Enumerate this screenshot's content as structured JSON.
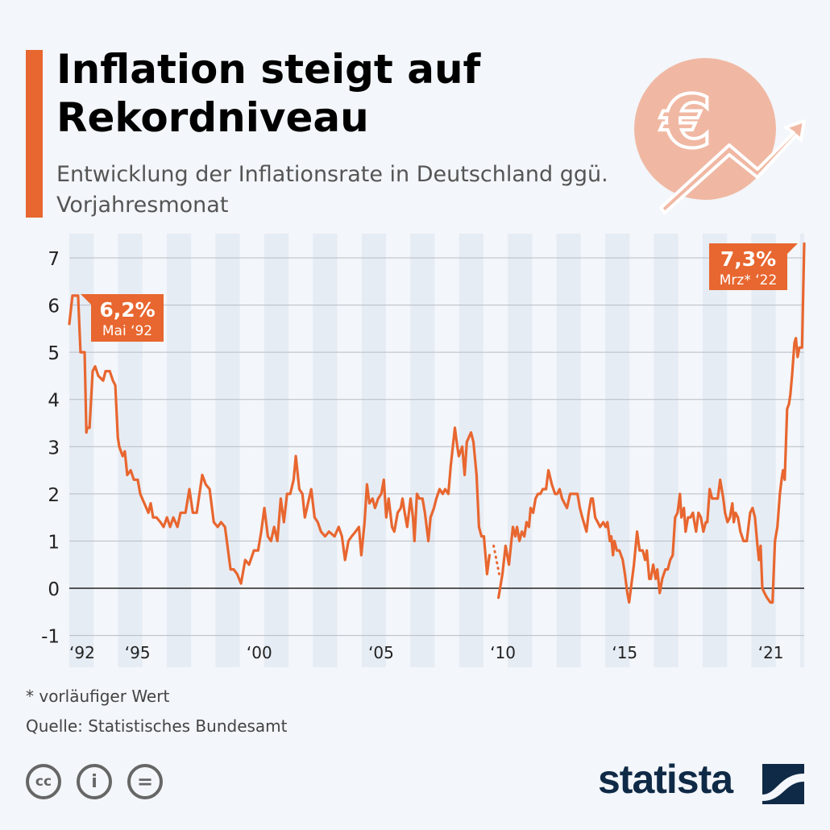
{
  "header": {
    "title": "Inflation steigt auf Rekordniveau",
    "subtitle": "Entwicklung der Inflationsrate in Deutschland ggü. Vorjahresmonat",
    "hero_icon": "euro-rising-arrow-icon",
    "hero_icon_text": "€"
  },
  "colors": {
    "accent": "#e8662f",
    "background": "#f3f6fa",
    "stripe": "#e6ecf4",
    "grid": "#b8bcc4",
    "zero_line": "#222222",
    "brand": "#0f2a46",
    "icon_circle": "#f0b8a3"
  },
  "chart_data": {
    "type": "line",
    "xlabel": "",
    "ylabel": "",
    "ylim": [
      -1,
      7.3
    ],
    "xlim": [
      1992,
      2022.17
    ],
    "yticks": [
      "-1",
      "0",
      "1",
      "2",
      "3",
      "4",
      "5",
      "6",
      "7"
    ],
    "xticks": [
      {
        "value": 1992,
        "label": "‘92"
      },
      {
        "value": 1995,
        "label": "‘95"
      },
      {
        "value": 2000,
        "label": "‘00"
      },
      {
        "value": 2005,
        "label": "‘05"
      },
      {
        "value": 2010,
        "label": "‘10"
      },
      {
        "value": 2015,
        "label": "‘15"
      },
      {
        "value": 2021,
        "label": "‘21"
      }
    ],
    "grid": true,
    "alternating_year_stripes": true,
    "annotations": [
      {
        "value_label": "6,2%",
        "date_label": "Mai ‘92",
        "x": 1992.36,
        "y": 6.2
      },
      {
        "value_label": "7,3%",
        "date_label": "Mrz* ‘22",
        "x": 2022.17,
        "y": 7.3
      }
    ],
    "segments": [
      {
        "style": "solid",
        "points": [
          [
            1992.0,
            5.6
          ],
          [
            1992.13,
            6.2
          ],
          [
            1992.3,
            6.2
          ],
          [
            1992.36,
            6.2
          ],
          [
            1992.46,
            5.0
          ],
          [
            1992.63,
            5.0
          ],
          [
            1992.7,
            3.3
          ],
          [
            1992.73,
            3.4
          ],
          [
            1992.83,
            3.4
          ],
          [
            1992.96,
            4.6
          ],
          [
            1993.06,
            4.7
          ],
          [
            1993.19,
            4.5
          ],
          [
            1993.39,
            4.4
          ],
          [
            1993.49,
            4.6
          ],
          [
            1993.66,
            4.6
          ],
          [
            1993.79,
            4.4
          ],
          [
            1993.89,
            4.3
          ],
          [
            1993.99,
            3.2
          ],
          [
            1994.05,
            3.0
          ],
          [
            1994.19,
            2.8
          ],
          [
            1994.28,
            2.9
          ],
          [
            1994.38,
            2.4
          ],
          [
            1994.52,
            2.5
          ],
          [
            1994.65,
            2.3
          ],
          [
            1994.81,
            2.3
          ],
          [
            1994.91,
            2.0
          ],
          [
            1995.08,
            1.8
          ],
          [
            1995.25,
            1.6
          ],
          [
            1995.34,
            1.8
          ],
          [
            1995.44,
            1.5
          ],
          [
            1995.58,
            1.5
          ],
          [
            1995.74,
            1.4
          ],
          [
            1995.87,
            1.3
          ],
          [
            1996.01,
            1.5
          ],
          [
            1996.14,
            1.3
          ],
          [
            1996.27,
            1.5
          ],
          [
            1996.44,
            1.3
          ],
          [
            1996.57,
            1.6
          ],
          [
            1996.77,
            1.6
          ],
          [
            1996.93,
            2.1
          ],
          [
            1997.07,
            1.6
          ],
          [
            1997.23,
            1.6
          ],
          [
            1997.46,
            2.4
          ],
          [
            1997.6,
            2.2
          ],
          [
            1997.76,
            2.1
          ],
          [
            1997.93,
            1.4
          ],
          [
            1998.09,
            1.3
          ],
          [
            1998.23,
            1.4
          ],
          [
            1998.39,
            1.3
          ],
          [
            1998.62,
            0.4
          ],
          [
            1998.75,
            0.4
          ],
          [
            1998.89,
            0.3
          ],
          [
            1999.05,
            0.1
          ],
          [
            1999.22,
            0.6
          ],
          [
            1999.38,
            0.5
          ],
          [
            1999.58,
            0.8
          ],
          [
            1999.75,
            0.8
          ],
          [
            1999.88,
            1.2
          ],
          [
            2000.01,
            1.7
          ],
          [
            2000.15,
            1.1
          ],
          [
            2000.28,
            1.0
          ],
          [
            2000.41,
            1.3
          ],
          [
            2000.54,
            1.0
          ],
          [
            2000.68,
            1.9
          ],
          [
            2000.81,
            1.4
          ],
          [
            2000.94,
            2.0
          ],
          [
            2001.07,
            2.0
          ],
          [
            2001.21,
            2.3
          ],
          [
            2001.3,
            2.8
          ],
          [
            2001.44,
            2.1
          ],
          [
            2001.57,
            2.0
          ],
          [
            2001.67,
            1.5
          ],
          [
            2001.8,
            1.8
          ],
          [
            2001.93,
            2.1
          ],
          [
            2002.07,
            1.5
          ],
          [
            2002.2,
            1.4
          ],
          [
            2002.33,
            1.2
          ],
          [
            2002.5,
            1.1
          ],
          [
            2002.66,
            1.2
          ],
          [
            2002.89,
            1.1
          ],
          [
            2003.06,
            1.3
          ],
          [
            2003.19,
            1.1
          ],
          [
            2003.32,
            0.6
          ],
          [
            2003.46,
            1.0
          ],
          [
            2003.59,
            1.1
          ],
          [
            2003.75,
            1.2
          ],
          [
            2003.89,
            1.3
          ],
          [
            2003.99,
            0.7
          ],
          [
            2004.12,
            1.4
          ],
          [
            2004.22,
            2.2
          ],
          [
            2004.32,
            1.8
          ],
          [
            2004.45,
            1.9
          ],
          [
            2004.55,
            1.7
          ],
          [
            2004.68,
            1.9
          ],
          [
            2004.81,
            2.0
          ],
          [
            2004.91,
            2.3
          ],
          [
            2005.01,
            1.5
          ],
          [
            2005.11,
            1.9
          ],
          [
            2005.25,
            1.3
          ],
          [
            2005.34,
            1.2
          ],
          [
            2005.48,
            1.6
          ],
          [
            2005.61,
            1.7
          ],
          [
            2005.68,
            1.9
          ],
          [
            2005.77,
            1.6
          ],
          [
            2005.87,
            1.3
          ],
          [
            2006.01,
            1.9
          ],
          [
            2006.11,
            1.5
          ],
          [
            2006.17,
            1.0
          ],
          [
            2006.27,
            2.0
          ],
          [
            2006.37,
            1.9
          ],
          [
            2006.5,
            1.9
          ],
          [
            2006.6,
            1.6
          ],
          [
            2006.74,
            1.0
          ],
          [
            2006.83,
            1.5
          ],
          [
            2006.97,
            1.7
          ],
          [
            2007.07,
            1.9
          ],
          [
            2007.2,
            2.1
          ],
          [
            2007.33,
            2.0
          ],
          [
            2007.43,
            2.1
          ],
          [
            2007.56,
            2.0
          ],
          [
            2007.66,
            2.6
          ],
          [
            2007.83,
            3.4
          ],
          [
            2007.93,
            3.0
          ],
          [
            2007.99,
            2.8
          ],
          [
            2008.13,
            3.0
          ],
          [
            2008.23,
            2.4
          ],
          [
            2008.32,
            3.1
          ],
          [
            2008.49,
            3.3
          ],
          [
            2008.59,
            3.1
          ],
          [
            2008.72,
            2.4
          ],
          [
            2008.82,
            1.3
          ],
          [
            2008.92,
            1.1
          ],
          [
            2009.02,
            1.1
          ],
          [
            2009.15,
            0.3
          ],
          [
            2009.25,
            0.7
          ]
        ]
      },
      {
        "style": "dotted",
        "points": [
          [
            2009.42,
            0.9
          ],
          [
            2009.65,
            0.3
          ]
        ]
      },
      {
        "style": "solid",
        "points": [
          [
            2009.62,
            -0.2
          ],
          [
            2009.78,
            0.3
          ],
          [
            2009.91,
            0.9
          ],
          [
            2010.05,
            0.5
          ],
          [
            2010.11,
            0.8
          ],
          [
            2010.21,
            1.3
          ],
          [
            2010.31,
            1.1
          ],
          [
            2010.38,
            1.3
          ],
          [
            2010.48,
            1.0
          ],
          [
            2010.58,
            1.2
          ],
          [
            2010.68,
            1.1
          ],
          [
            2010.77,
            1.4
          ],
          [
            2010.87,
            1.3
          ],
          [
            2010.94,
            1.7
          ],
          [
            2011.04,
            1.6
          ],
          [
            2011.14,
            1.9
          ],
          [
            2011.24,
            2.0
          ],
          [
            2011.34,
            2.0
          ],
          [
            2011.44,
            2.1
          ],
          [
            2011.57,
            2.1
          ],
          [
            2011.67,
            2.5
          ],
          [
            2011.81,
            2.2
          ],
          [
            2011.94,
            2.0
          ],
          [
            2012.03,
            2.0
          ],
          [
            2012.13,
            2.1
          ],
          [
            2012.23,
            1.9
          ],
          [
            2012.33,
            1.8
          ],
          [
            2012.43,
            1.7
          ],
          [
            2012.56,
            2.0
          ],
          [
            2012.7,
            2.0
          ],
          [
            2012.86,
            2.0
          ],
          [
            2012.96,
            1.7
          ],
          [
            2013.06,
            1.5
          ],
          [
            2013.23,
            1.2
          ],
          [
            2013.32,
            1.6
          ],
          [
            2013.42,
            1.9
          ],
          [
            2013.49,
            1.9
          ],
          [
            2013.59,
            1.5
          ],
          [
            2013.69,
            1.4
          ],
          [
            2013.79,
            1.3
          ],
          [
            2013.92,
            1.4
          ],
          [
            2014.02,
            1.3
          ],
          [
            2014.09,
            1.4
          ],
          [
            2014.19,
            1.0
          ],
          [
            2014.25,
            1.1
          ],
          [
            2014.32,
            0.7
          ],
          [
            2014.38,
            1.0
          ],
          [
            2014.48,
            0.8
          ],
          [
            2014.58,
            0.8
          ],
          [
            2014.72,
            0.6
          ],
          [
            2014.81,
            0.3
          ],
          [
            2014.91,
            -0.1
          ],
          [
            2014.98,
            -0.3
          ],
          [
            2015.08,
            0.1
          ],
          [
            2015.18,
            0.5
          ],
          [
            2015.31,
            1.2
          ],
          [
            2015.41,
            0.8
          ],
          [
            2015.54,
            0.8
          ],
          [
            2015.64,
            0.6
          ],
          [
            2015.71,
            0.8
          ],
          [
            2015.81,
            0.2
          ],
          [
            2015.87,
            0.2
          ],
          [
            2015.97,
            0.5
          ],
          [
            2016.07,
            0.2
          ],
          [
            2016.14,
            0.4
          ],
          [
            2016.24,
            -0.1
          ],
          [
            2016.34,
            0.2
          ],
          [
            2016.47,
            0.4
          ],
          [
            2016.57,
            0.4
          ],
          [
            2016.67,
            0.6
          ],
          [
            2016.77,
            0.7
          ],
          [
            2016.87,
            1.5
          ],
          [
            2016.97,
            1.6
          ],
          [
            2017.07,
            2.0
          ],
          [
            2017.13,
            1.5
          ],
          [
            2017.23,
            1.7
          ],
          [
            2017.3,
            1.2
          ],
          [
            2017.4,
            1.5
          ],
          [
            2017.5,
            1.5
          ],
          [
            2017.6,
            1.6
          ],
          [
            2017.66,
            1.4
          ],
          [
            2017.73,
            1.2
          ],
          [
            2017.83,
            1.6
          ],
          [
            2017.93,
            1.5
          ],
          [
            2018.03,
            1.2
          ],
          [
            2018.13,
            1.4
          ],
          [
            2018.19,
            1.4
          ],
          [
            2018.29,
            2.1
          ],
          [
            2018.39,
            1.9
          ],
          [
            2018.52,
            1.9
          ],
          [
            2018.62,
            1.9
          ],
          [
            2018.72,
            2.3
          ],
          [
            2018.85,
            1.9
          ],
          [
            2018.92,
            1.6
          ],
          [
            2019.02,
            1.4
          ],
          [
            2019.12,
            1.5
          ],
          [
            2019.22,
            1.8
          ],
          [
            2019.28,
            1.4
          ],
          [
            2019.35,
            1.6
          ],
          [
            2019.45,
            1.5
          ],
          [
            2019.55,
            1.2
          ],
          [
            2019.68,
            1.0
          ],
          [
            2019.81,
            1.0
          ],
          [
            2019.95,
            1.6
          ],
          [
            2020.05,
            1.7
          ],
          [
            2020.15,
            1.5
          ],
          [
            2020.25,
            0.9
          ],
          [
            2020.31,
            0.6
          ],
          [
            2020.38,
            0.9
          ],
          [
            2020.45,
            0.0
          ],
          [
            2020.54,
            -0.1
          ],
          [
            2020.64,
            -0.2
          ],
          [
            2020.78,
            -0.3
          ],
          [
            2020.87,
            -0.3
          ],
          [
            2020.97,
            1.0
          ],
          [
            2021.07,
            1.3
          ],
          [
            2021.17,
            2.0
          ],
          [
            2021.24,
            2.3
          ],
          [
            2021.3,
            2.5
          ],
          [
            2021.37,
            2.3
          ],
          [
            2021.47,
            3.8
          ],
          [
            2021.54,
            3.9
          ],
          [
            2021.6,
            4.1
          ],
          [
            2021.67,
            4.5
          ],
          [
            2021.77,
            5.2
          ],
          [
            2021.83,
            5.3
          ],
          [
            2021.9,
            4.9
          ],
          [
            2021.97,
            5.1
          ],
          [
            2022.08,
            5.1
          ],
          [
            2022.17,
            7.3
          ]
        ]
      }
    ]
  },
  "footer": {
    "note": "* vorläufiger Wert",
    "source": "Quelle: Statistisches Bundesamt",
    "license_icons": [
      {
        "name": "cc-icon",
        "glyph": "cc"
      },
      {
        "name": "attribution-icon",
        "glyph": "i"
      },
      {
        "name": "no-derivatives-icon",
        "glyph": "="
      }
    ],
    "brand": "statista"
  }
}
